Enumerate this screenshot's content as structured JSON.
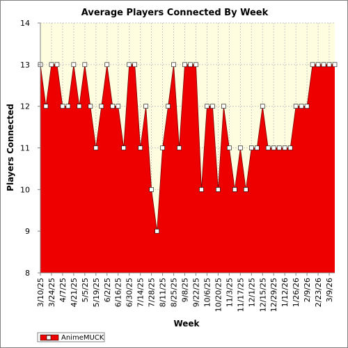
{
  "chart_data": {
    "type": "area",
    "title": "Average Players Connected By Week",
    "xlabel": "Week",
    "ylabel": "Players Connected",
    "ylim": [
      8,
      14
    ],
    "yticks": [
      8,
      9,
      10,
      11,
      12,
      13,
      14
    ],
    "grid": true,
    "legend_position": "bottom-left",
    "colors": {
      "fill": "#ee0000",
      "plot_background": "#fffde0",
      "grid": "#c8c8c8",
      "marker_fill": "#ffffff"
    },
    "x": [
      "3/10/25",
      "3/17/25",
      "3/24/25",
      "3/31/25",
      "4/7/25",
      "4/14/25",
      "4/21/25",
      "4/28/25",
      "5/5/25",
      "5/12/25",
      "5/19/25",
      "5/26/25",
      "6/2/25",
      "6/9/25",
      "6/16/25",
      "6/23/25",
      "6/30/25",
      "7/7/25",
      "7/14/25",
      "7/21/25",
      "7/28/25",
      "8/4/25",
      "8/11/25",
      "8/18/25",
      "8/25/25",
      "9/1/25",
      "9/8/25",
      "9/15/25",
      "9/22/25",
      "9/29/25",
      "10/6/25",
      "10/13/25",
      "10/20/25",
      "10/27/25",
      "11/3/25",
      "11/10/25",
      "11/17/25",
      "11/24/25",
      "12/1/25",
      "12/8/25",
      "12/15/25",
      "12/22/25",
      "12/29/25",
      "1/5/26",
      "1/12/26",
      "1/19/26",
      "1/26/26",
      "2/2/26",
      "2/9/26",
      "2/16/26",
      "2/23/26",
      "3/2/26",
      "3/9/26",
      "3/16/26"
    ],
    "tick_labels": [
      "3/10/25",
      "3/24/25",
      "4/7/25",
      "4/21/25",
      "5/5/25",
      "5/19/25",
      "6/2/25",
      "6/16/25",
      "6/30/25",
      "7/14/25",
      "7/28/25",
      "8/11/25",
      "8/25/25",
      "9/8/25",
      "9/22/25",
      "10/6/25",
      "10/20/25",
      "11/3/25",
      "11/17/25",
      "12/1/25",
      "12/15/25",
      "12/29/25",
      "1/12/26",
      "1/26/26",
      "2/9/26",
      "2/23/26",
      "3/9/26"
    ],
    "series": [
      {
        "name": "AnimeMUCK",
        "values": [
          13,
          12,
          13,
          13,
          12,
          12,
          13,
          12,
          13,
          12,
          11,
          12,
          13,
          12,
          12,
          11,
          13,
          13,
          11,
          12,
          10,
          9,
          11,
          12,
          13,
          11,
          13,
          13,
          13,
          10,
          12,
          12,
          10,
          12,
          11,
          10,
          11,
          10,
          11,
          11,
          12,
          11,
          11,
          11,
          11,
          11,
          12,
          12,
          12,
          13,
          13,
          13,
          13,
          13
        ]
      }
    ]
  }
}
